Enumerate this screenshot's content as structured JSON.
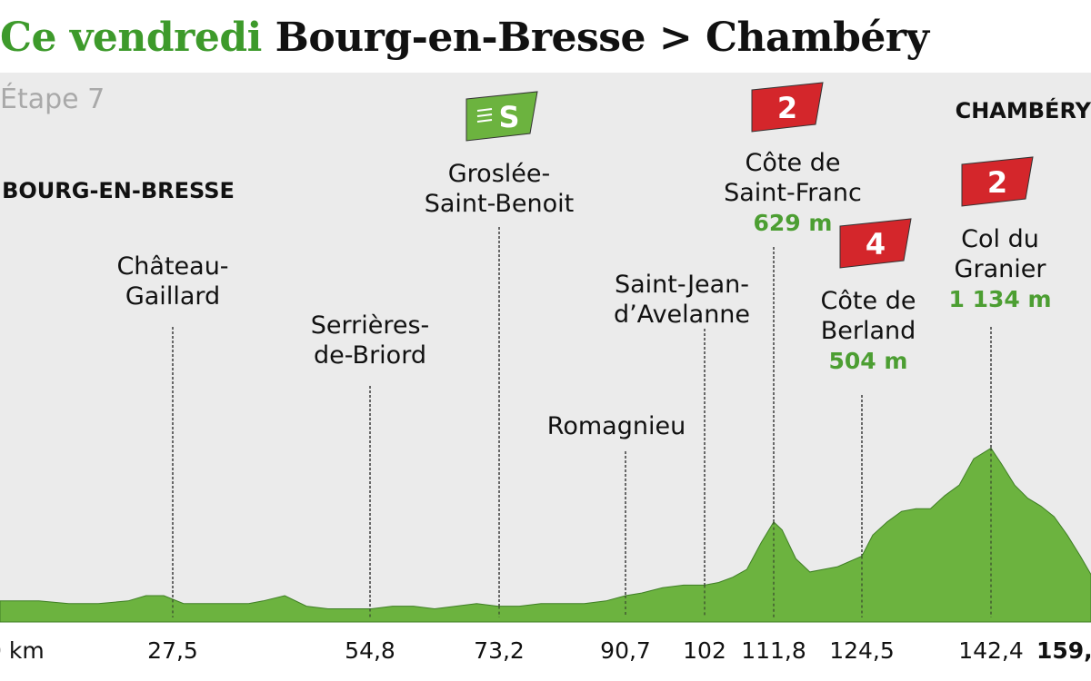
{
  "title": {
    "prefix": "Ce vendredi",
    "route": "Bourg-en-Bresse > Chambéry"
  },
  "stage_label": "Étape 7",
  "colors": {
    "profile": "#6cb33f",
    "title_green": "#3d9a2b",
    "climb_flag": "#d4262b",
    "sprint_flag": "#6cb33f",
    "altitude_text": "#4c9e32",
    "panel": "#ebebeb"
  },
  "chart_data": {
    "type": "area",
    "x_unit": "km",
    "xlim": [
      0,
      159
    ],
    "profile": {
      "x": [
        0,
        5,
        10,
        15,
        20,
        23,
        26,
        29,
        32,
        35,
        38,
        40,
        43,
        46,
        49,
        52,
        55,
        58,
        61,
        64,
        67,
        70,
        73,
        76,
        79,
        82,
        85,
        88,
        90.7,
        93,
        96,
        99,
        102,
        104,
        106,
        108,
        110,
        111.8,
        113,
        115,
        117,
        119,
        121,
        124.5,
        126,
        128,
        130,
        132,
        134,
        136,
        138,
        140,
        142.4,
        144,
        146,
        148,
        150,
        152,
        154,
        156,
        158,
        159
      ],
      "y": [
        0.08,
        0.08,
        0.07,
        0.07,
        0.08,
        0.1,
        0.1,
        0.07,
        0.07,
        0.07,
        0.07,
        0.08,
        0.1,
        0.06,
        0.05,
        0.05,
        0.05,
        0.06,
        0.06,
        0.05,
        0.06,
        0.07,
        0.06,
        0.06,
        0.07,
        0.07,
        0.07,
        0.08,
        0.1,
        0.11,
        0.13,
        0.14,
        0.14,
        0.15,
        0.17,
        0.2,
        0.3,
        0.38,
        0.35,
        0.24,
        0.19,
        0.2,
        0.21,
        0.25,
        0.33,
        0.38,
        0.42,
        0.43,
        0.43,
        0.48,
        0.52,
        0.62,
        0.66,
        0.6,
        0.52,
        0.47,
        0.44,
        0.4,
        0.33,
        0.25,
        0.18,
        0.15
      ]
    },
    "x_ticks": [
      {
        "x": 0,
        "label": "0 km"
      },
      {
        "x": 27.5,
        "label": "27,5"
      },
      {
        "x": 54.8,
        "label": "54,8"
      },
      {
        "x": 73.2,
        "label": "73,2"
      },
      {
        "x": 90.7,
        "label": "90,7"
      },
      {
        "x": 102,
        "label": "102"
      },
      {
        "x": 111.8,
        "label": "111,8"
      },
      {
        "x": 124.5,
        "label": "124,5"
      },
      {
        "x": 142.4,
        "label": "142,4"
      },
      {
        "x": 159,
        "label": "159,",
        "bold": true
      }
    ],
    "places": [
      {
        "x": 0,
        "lines": [
          "BOURG-EN-BRESSE"
        ],
        "bold": true
      },
      {
        "x": 27.5,
        "lines": [
          "Château-",
          "Gaillard"
        ]
      },
      {
        "x": 54.8,
        "lines": [
          "Serrières-",
          "de-Briord"
        ]
      },
      {
        "x": 73.2,
        "lines": [
          "Groslée-",
          "Saint-Benoit"
        ],
        "flag": "S",
        "flag_type": "sprint"
      },
      {
        "x": 90.7,
        "lines": [
          "Romagnieu"
        ]
      },
      {
        "x": 102,
        "lines": [
          "Saint-Jean-",
          "d’Avelanne"
        ]
      },
      {
        "x": 111.8,
        "lines": [
          "Côte de",
          "Saint-Franc"
        ],
        "altitude": "629 m",
        "flag": "2",
        "flag_type": "climb"
      },
      {
        "x": 124.5,
        "lines": [
          "Côte de",
          "Berland"
        ],
        "altitude": "504 m",
        "flag": "4",
        "flag_type": "climb"
      },
      {
        "x": 142.4,
        "lines": [
          "Col du",
          "Granier"
        ],
        "altitude": "1 134 m",
        "flag": "2",
        "flag_type": "climb"
      },
      {
        "x": 159,
        "lines": [
          "CHAMBÉRY"
        ],
        "bold": true
      }
    ]
  }
}
